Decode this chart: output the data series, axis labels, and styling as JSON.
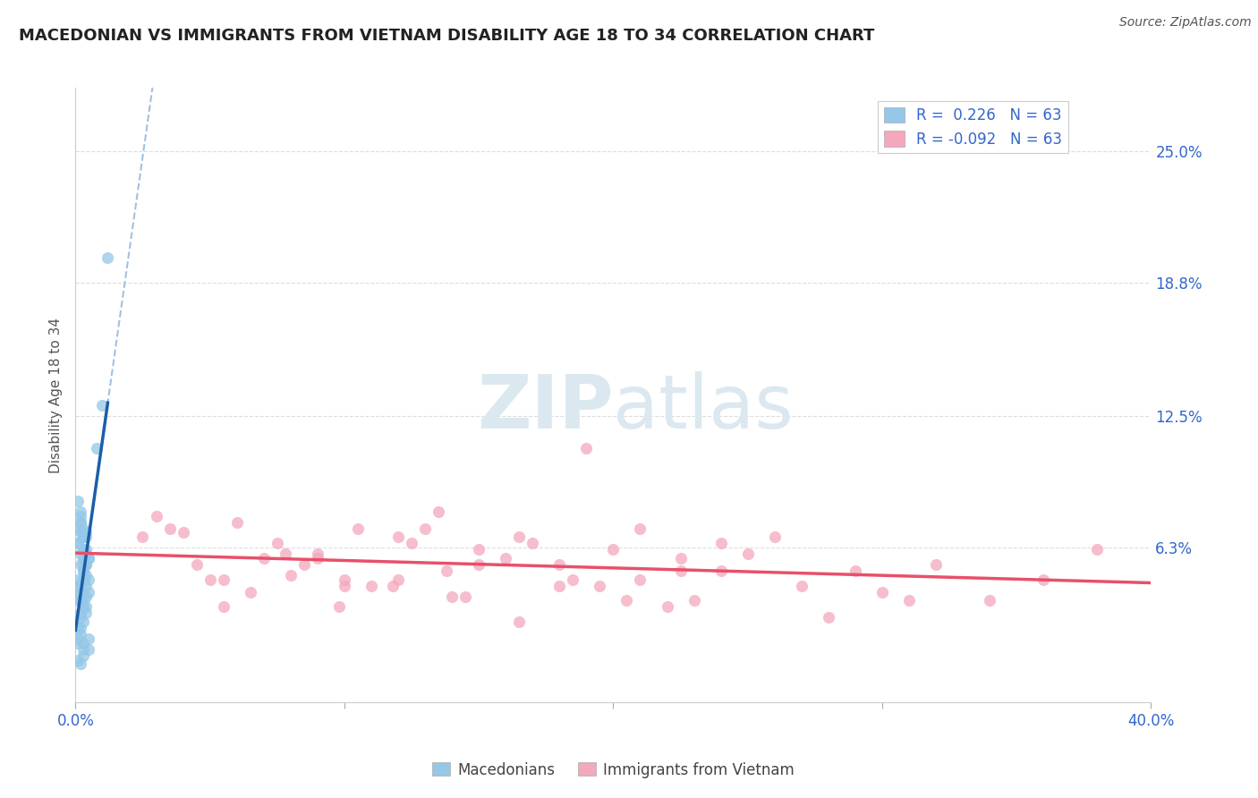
{
  "title": "MACEDONIAN VS IMMIGRANTS FROM VIETNAM DISABILITY AGE 18 TO 34 CORRELATION CHART",
  "source": "Source: ZipAtlas.com",
  "xlabel_macedonians": "Macedonians",
  "xlabel_vietnam": "Immigrants from Vietnam",
  "ylabel": "Disability Age 18 to 34",
  "xlim": [
    0.0,
    0.4
  ],
  "ylim": [
    -0.01,
    0.28
  ],
  "xticks": [
    0.0,
    0.1,
    0.2,
    0.3,
    0.4
  ],
  "xtick_labels": [
    "0.0%",
    "",
    "",
    "",
    "40.0%"
  ],
  "ytick_positions": [
    0.063,
    0.125,
    0.188,
    0.25
  ],
  "ytick_labels": [
    "6.3%",
    "12.5%",
    "18.8%",
    "25.0%"
  ],
  "r_macedonian": 0.226,
  "r_vietnam": -0.092,
  "n_macedonian": 63,
  "n_vietnam": 63,
  "color_macedonian": "#94c7e8",
  "color_vietnam": "#f4a8bc",
  "line_color_macedonian": "#1a5fa8",
  "line_color_vietnam": "#e8506a",
  "dashed_color": "#99bbdd",
  "watermark_color": "#dce8f0",
  "background_color": "#ffffff",
  "legend_text_color": "#3366cc",
  "tick_label_color": "#3366cc",
  "source_color": "#555555",
  "ylabel_color": "#555555",
  "grid_color": "#dddddd",
  "macedonian_x": [
    0.002,
    0.003,
    0.001,
    0.004,
    0.003,
    0.005,
    0.002,
    0.001,
    0.003,
    0.004,
    0.001,
    0.002,
    0.003,
    0.004,
    0.005,
    0.002,
    0.003,
    0.001,
    0.004,
    0.002,
    0.003,
    0.001,
    0.005,
    0.002,
    0.004,
    0.003,
    0.002,
    0.001,
    0.003,
    0.004,
    0.002,
    0.001,
    0.003,
    0.005,
    0.002,
    0.004,
    0.003,
    0.001,
    0.002,
    0.003,
    0.004,
    0.002,
    0.003,
    0.001,
    0.004,
    0.002,
    0.003,
    0.001,
    0.005,
    0.002,
    0.003,
    0.001,
    0.004,
    0.002,
    0.003,
    0.001,
    0.004,
    0.005,
    0.002,
    0.003,
    0.008,
    0.01,
    0.012
  ],
  "macedonian_y": [
    0.075,
    0.068,
    0.072,
    0.055,
    0.062,
    0.058,
    0.078,
    0.065,
    0.052,
    0.07,
    0.048,
    0.06,
    0.055,
    0.045,
    0.042,
    0.08,
    0.068,
    0.085,
    0.05,
    0.075,
    0.058,
    0.065,
    0.048,
    0.038,
    0.04,
    0.035,
    0.03,
    0.045,
    0.028,
    0.055,
    0.025,
    0.02,
    0.018,
    0.015,
    0.022,
    0.032,
    0.012,
    0.01,
    0.008,
    0.072,
    0.062,
    0.055,
    0.048,
    0.04,
    0.035,
    0.042,
    0.038,
    0.025,
    0.02,
    0.032,
    0.015,
    0.018,
    0.06,
    0.045,
    0.052,
    0.038,
    0.068,
    0.058,
    0.07,
    0.048,
    0.11,
    0.13,
    0.2
  ],
  "vietnam_x": [
    0.025,
    0.045,
    0.06,
    0.075,
    0.09,
    0.105,
    0.12,
    0.135,
    0.15,
    0.165,
    0.18,
    0.195,
    0.21,
    0.225,
    0.24,
    0.03,
    0.05,
    0.07,
    0.09,
    0.11,
    0.13,
    0.15,
    0.17,
    0.19,
    0.21,
    0.23,
    0.25,
    0.27,
    0.29,
    0.31,
    0.04,
    0.065,
    0.085,
    0.1,
    0.12,
    0.14,
    0.16,
    0.18,
    0.2,
    0.22,
    0.24,
    0.26,
    0.28,
    0.3,
    0.32,
    0.34,
    0.36,
    0.38,
    0.055,
    0.08,
    0.1,
    0.125,
    0.145,
    0.165,
    0.185,
    0.205,
    0.225,
    0.035,
    0.055,
    0.078,
    0.098,
    0.118,
    0.138
  ],
  "vietnam_y": [
    0.068,
    0.055,
    0.075,
    0.065,
    0.058,
    0.072,
    0.048,
    0.08,
    0.062,
    0.068,
    0.055,
    0.045,
    0.072,
    0.052,
    0.065,
    0.078,
    0.048,
    0.058,
    0.06,
    0.045,
    0.072,
    0.055,
    0.065,
    0.11,
    0.048,
    0.038,
    0.06,
    0.045,
    0.052,
    0.038,
    0.07,
    0.042,
    0.055,
    0.048,
    0.068,
    0.04,
    0.058,
    0.045,
    0.062,
    0.035,
    0.052,
    0.068,
    0.03,
    0.042,
    0.055,
    0.038,
    0.048,
    0.062,
    0.035,
    0.05,
    0.045,
    0.065,
    0.04,
    0.028,
    0.048,
    0.038,
    0.058,
    0.072,
    0.048,
    0.06,
    0.035,
    0.045,
    0.052
  ]
}
